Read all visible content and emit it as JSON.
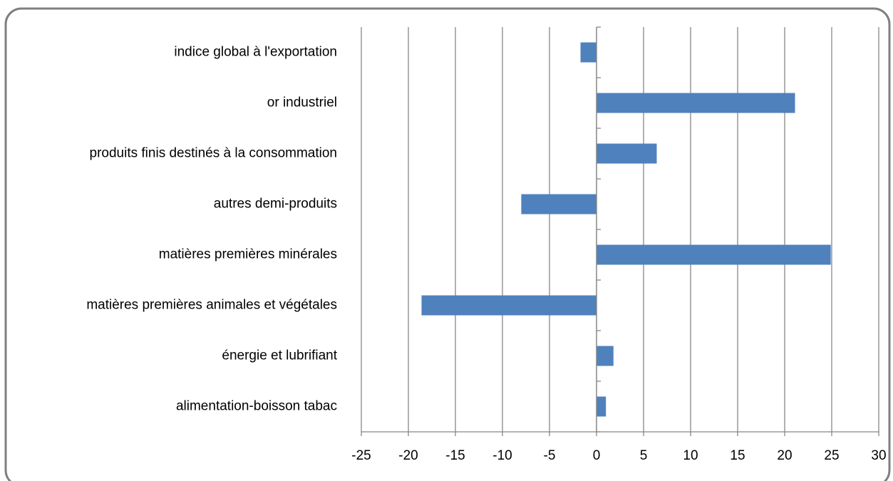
{
  "chart_data": {
    "type": "bar",
    "orientation": "horizontal",
    "categories": [
      "indice global à l'exportation",
      "or industriel",
      "produits finis destinés à la consommation",
      "autres demi-produits",
      "matières premières minérales",
      "matières premières animales et végétales",
      "énergie et lubrifiant",
      "alimentation-boisson tabac"
    ],
    "values": [
      -1.7,
      21.1,
      6.4,
      -8.0,
      24.9,
      -18.6,
      1.8,
      1.0
    ],
    "color": "#4f81bd",
    "xlim": [
      -25,
      30
    ],
    "xticks": [
      -25,
      -20,
      -15,
      -10,
      -5,
      0,
      5,
      10,
      15,
      20,
      25,
      30
    ],
    "grid": true
  }
}
